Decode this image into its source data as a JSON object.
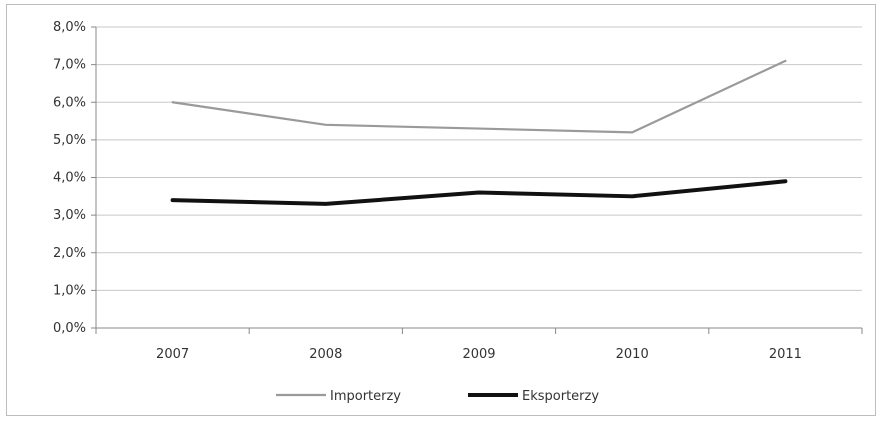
{
  "chart_data": {
    "type": "line",
    "categories": [
      "2007",
      "2008",
      "2009",
      "2010",
      "2011"
    ],
    "series": [
      {
        "name": "Importerzy",
        "values": [
          6.0,
          5.4,
          5.3,
          5.2,
          7.1
        ],
        "color": "#9a9a9a"
      },
      {
        "name": "Eksporterzy",
        "values": [
          3.4,
          3.3,
          3.6,
          3.5,
          3.9
        ],
        "color": "#111111"
      }
    ],
    "ylim": [
      0,
      8
    ],
    "yticks": [
      "0,0%",
      "1,0%",
      "2,0%",
      "3,0%",
      "4,0%",
      "5,0%",
      "6,0%",
      "7,0%",
      "8,0%"
    ],
    "grid": true,
    "legend_position": "bottom"
  }
}
